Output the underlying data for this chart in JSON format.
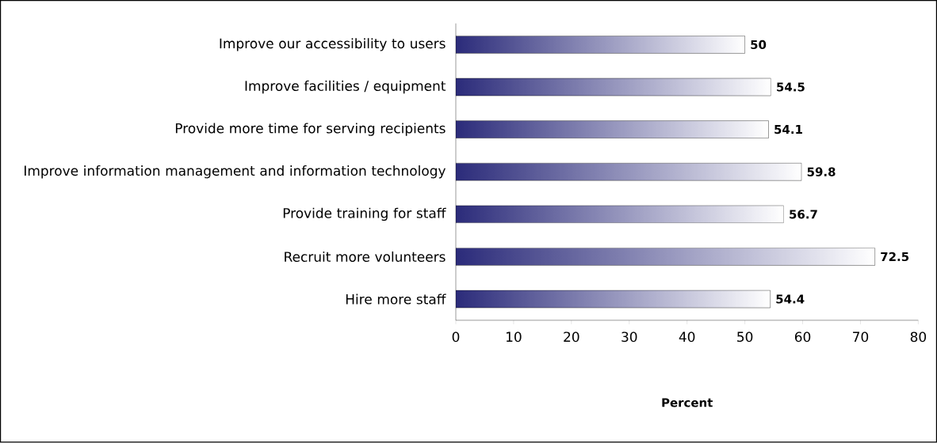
{
  "chart_data": {
    "type": "bar",
    "orientation": "horizontal",
    "xlabel": "Percent",
    "categories": [
      "Improve our accessibility to users",
      "Improve facilities / equipment",
      "Provide more time for serving recipients",
      "Improve information management and information technology",
      "Provide training for staff",
      "Recruit more volunteers",
      "Hire more staff"
    ],
    "values": [
      50,
      54.5,
      54.1,
      59.8,
      56.7,
      72.5,
      54.4
    ],
    "color": "#2b2b7a",
    "xlim": [
      0,
      80
    ],
    "xticks": [
      0,
      10,
      20,
      30,
      40,
      50,
      60,
      70,
      80
    ],
    "data_labels": true
  }
}
